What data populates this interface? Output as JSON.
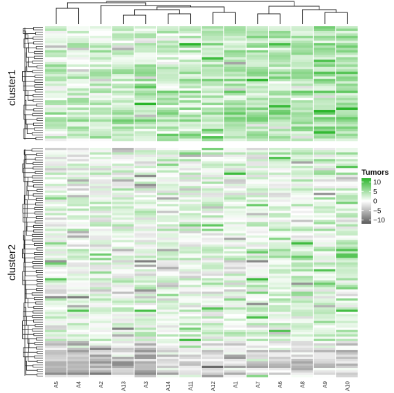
{
  "chart_data": {
    "type": "heatmap",
    "columns": [
      "A5",
      "A4",
      "A2",
      "A13",
      "A3",
      "A14",
      "A11",
      "A12",
      "A1",
      "A7",
      "A6",
      "A8",
      "A9",
      "A10"
    ],
    "row_clusters": [
      {
        "name": "cluster1",
        "rows": 48
      },
      {
        "name": "cluster2",
        "rows": 102
      }
    ],
    "legend": {
      "title": "Tumors",
      "ticks": [
        10,
        5,
        0,
        -5,
        -10
      ],
      "range": [
        -12,
        12
      ],
      "colors": {
        "high": "#2bb52b",
        "mid": "#ffffff",
        "low": "#5c5c5c"
      }
    },
    "row_seed": 1337
  }
}
